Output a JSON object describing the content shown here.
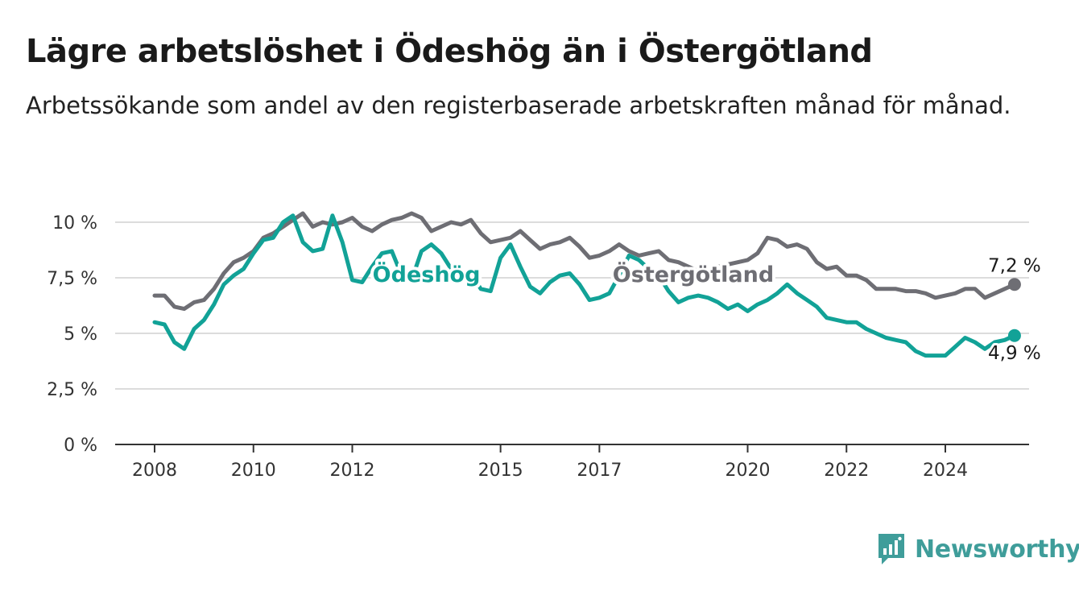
{
  "header": {
    "title": "Lägre arbetslöshet i Ödeshög än i Östergötland",
    "subtitle": "Arbetssökande som andel av den registerbaserade arbetskraften månad för månad."
  },
  "brand": {
    "name": "Newsworthy",
    "icon": "newsworthy-logo-icon",
    "color": "#3f9d9a"
  },
  "colors": {
    "odeshog": "#12a297",
    "ostergotland": "#6e6e74",
    "grid": "#dcdcdc",
    "axis": "#333333"
  },
  "chart_data": {
    "type": "line",
    "title": "Lägre arbetslöshet i Ödeshög än i Östergötland",
    "subtitle": "Arbetssökande som andel av den registerbaserade arbetskraften månad för månad.",
    "xlabel": "",
    "ylabel": "",
    "xlim": [
      2007.3,
      2025.9
    ],
    "ylim": [
      0,
      10
    ],
    "grid": true,
    "yticks": [
      0,
      2.5,
      5,
      7.5,
      10
    ],
    "ytick_labels": [
      "0 %",
      "2,5 %",
      "5 %",
      "7,5 %",
      "10 %"
    ],
    "xticks": [
      2008,
      2010,
      2012,
      2015,
      2017,
      2020,
      2022,
      2024
    ],
    "xtick_labels": [
      "2008",
      "2010",
      "2012",
      "2015",
      "2017",
      "2020",
      "2022",
      "2024"
    ],
    "series": [
      {
        "name": "Östergötland",
        "color": "#6e6e74",
        "end_label": "7,2 %",
        "points": [
          [
            2008.0,
            6.7
          ],
          [
            2008.2,
            6.7
          ],
          [
            2008.4,
            6.2
          ],
          [
            2008.6,
            6.1
          ],
          [
            2008.8,
            6.4
          ],
          [
            2009.0,
            6.5
          ],
          [
            2009.2,
            7.0
          ],
          [
            2009.4,
            7.7
          ],
          [
            2009.6,
            8.2
          ],
          [
            2009.8,
            8.4
          ],
          [
            2010.0,
            8.7
          ],
          [
            2010.2,
            9.3
          ],
          [
            2010.4,
            9.5
          ],
          [
            2010.6,
            9.8
          ],
          [
            2010.8,
            10.1
          ],
          [
            2011.0,
            10.4
          ],
          [
            2011.2,
            9.8
          ],
          [
            2011.4,
            10.0
          ],
          [
            2011.6,
            9.9
          ],
          [
            2011.8,
            10.0
          ],
          [
            2012.0,
            10.2
          ],
          [
            2012.2,
            9.8
          ],
          [
            2012.4,
            9.6
          ],
          [
            2012.6,
            9.9
          ],
          [
            2012.8,
            10.1
          ],
          [
            2013.0,
            10.2
          ],
          [
            2013.2,
            10.4
          ],
          [
            2013.4,
            10.2
          ],
          [
            2013.6,
            9.6
          ],
          [
            2013.8,
            9.8
          ],
          [
            2014.0,
            10.0
          ],
          [
            2014.2,
            9.9
          ],
          [
            2014.4,
            10.1
          ],
          [
            2014.6,
            9.5
          ],
          [
            2014.8,
            9.1
          ],
          [
            2015.0,
            9.2
          ],
          [
            2015.2,
            9.3
          ],
          [
            2015.4,
            9.6
          ],
          [
            2015.6,
            9.2
          ],
          [
            2015.8,
            8.8
          ],
          [
            2016.0,
            9.0
          ],
          [
            2016.2,
            9.1
          ],
          [
            2016.4,
            9.3
          ],
          [
            2016.6,
            8.9
          ],
          [
            2016.8,
            8.4
          ],
          [
            2017.0,
            8.5
          ],
          [
            2017.2,
            8.7
          ],
          [
            2017.4,
            9.0
          ],
          [
            2017.6,
            8.7
          ],
          [
            2017.8,
            8.5
          ],
          [
            2018.0,
            8.6
          ],
          [
            2018.2,
            8.7
          ],
          [
            2018.4,
            8.3
          ],
          [
            2018.6,
            8.2
          ],
          [
            2018.8,
            8.0
          ],
          [
            2019.0,
            7.8
          ],
          [
            2019.2,
            7.9
          ],
          [
            2019.4,
            8.0
          ],
          [
            2019.6,
            8.1
          ],
          [
            2019.8,
            8.2
          ],
          [
            2020.0,
            8.3
          ],
          [
            2020.2,
            8.6
          ],
          [
            2020.4,
            9.3
          ],
          [
            2020.6,
            9.2
          ],
          [
            2020.8,
            8.9
          ],
          [
            2021.0,
            9.0
          ],
          [
            2021.2,
            8.8
          ],
          [
            2021.4,
            8.2
          ],
          [
            2021.6,
            7.9
          ],
          [
            2021.8,
            8.0
          ],
          [
            2022.0,
            7.6
          ],
          [
            2022.2,
            7.6
          ],
          [
            2022.4,
            7.4
          ],
          [
            2022.6,
            7.0
          ],
          [
            2022.8,
            7.0
          ],
          [
            2023.0,
            7.0
          ],
          [
            2023.2,
            6.9
          ],
          [
            2023.4,
            6.9
          ],
          [
            2023.6,
            6.8
          ],
          [
            2023.8,
            6.6
          ],
          [
            2024.0,
            6.7
          ],
          [
            2024.2,
            6.8
          ],
          [
            2024.4,
            7.0
          ],
          [
            2024.6,
            7.0
          ],
          [
            2024.8,
            6.6
          ],
          [
            2025.0,
            6.8
          ],
          [
            2025.2,
            7.0
          ],
          [
            2025.4,
            7.2
          ]
        ]
      },
      {
        "name": "Ödeshög",
        "color": "#12a297",
        "end_label": "4,9 %",
        "points": [
          [
            2008.0,
            5.5
          ],
          [
            2008.2,
            5.4
          ],
          [
            2008.4,
            4.6
          ],
          [
            2008.6,
            4.3
          ],
          [
            2008.8,
            5.2
          ],
          [
            2009.0,
            5.6
          ],
          [
            2009.2,
            6.3
          ],
          [
            2009.4,
            7.2
          ],
          [
            2009.6,
            7.6
          ],
          [
            2009.8,
            7.9
          ],
          [
            2010.0,
            8.6
          ],
          [
            2010.2,
            9.2
          ],
          [
            2010.4,
            9.3
          ],
          [
            2010.6,
            10.0
          ],
          [
            2010.8,
            10.3
          ],
          [
            2011.0,
            9.1
          ],
          [
            2011.2,
            8.7
          ],
          [
            2011.4,
            8.8
          ],
          [
            2011.6,
            10.3
          ],
          [
            2011.8,
            9.1
          ],
          [
            2012.0,
            7.4
          ],
          [
            2012.2,
            7.3
          ],
          [
            2012.4,
            8.0
          ],
          [
            2012.6,
            8.6
          ],
          [
            2012.8,
            8.7
          ],
          [
            2013.0,
            7.6
          ],
          [
            2013.2,
            7.4
          ],
          [
            2013.4,
            8.7
          ],
          [
            2013.6,
            9.0
          ],
          [
            2013.8,
            8.6
          ],
          [
            2014.0,
            7.9
          ],
          [
            2014.2,
            7.5
          ],
          [
            2014.4,
            7.7
          ],
          [
            2014.6,
            7.0
          ],
          [
            2014.8,
            6.9
          ],
          [
            2015.0,
            8.4
          ],
          [
            2015.2,
            9.0
          ],
          [
            2015.4,
            8.0
          ],
          [
            2015.6,
            7.1
          ],
          [
            2015.8,
            6.8
          ],
          [
            2016.0,
            7.3
          ],
          [
            2016.2,
            7.6
          ],
          [
            2016.4,
            7.7
          ],
          [
            2016.6,
            7.2
          ],
          [
            2016.8,
            6.5
          ],
          [
            2017.0,
            6.6
          ],
          [
            2017.2,
            6.8
          ],
          [
            2017.4,
            7.6
          ],
          [
            2017.6,
            8.5
          ],
          [
            2017.8,
            8.3
          ],
          [
            2018.0,
            7.9
          ],
          [
            2018.2,
            7.6
          ],
          [
            2018.4,
            6.9
          ],
          [
            2018.6,
            6.4
          ],
          [
            2018.8,
            6.6
          ],
          [
            2019.0,
            6.7
          ],
          [
            2019.2,
            6.6
          ],
          [
            2019.4,
            6.4
          ],
          [
            2019.6,
            6.1
          ],
          [
            2019.8,
            6.3
          ],
          [
            2020.0,
            6.0
          ],
          [
            2020.2,
            6.3
          ],
          [
            2020.4,
            6.5
          ],
          [
            2020.6,
            6.8
          ],
          [
            2020.8,
            7.2
          ],
          [
            2021.0,
            6.8
          ],
          [
            2021.2,
            6.5
          ],
          [
            2021.4,
            6.2
          ],
          [
            2021.6,
            5.7
          ],
          [
            2021.8,
            5.6
          ],
          [
            2022.0,
            5.5
          ],
          [
            2022.2,
            5.5
          ],
          [
            2022.4,
            5.2
          ],
          [
            2022.6,
            5.0
          ],
          [
            2022.8,
            4.8
          ],
          [
            2023.0,
            4.7
          ],
          [
            2023.2,
            4.6
          ],
          [
            2023.4,
            4.2
          ],
          [
            2023.6,
            4.0
          ],
          [
            2023.8,
            4.0
          ],
          [
            2024.0,
            4.0
          ],
          [
            2024.2,
            4.4
          ],
          [
            2024.4,
            4.8
          ],
          [
            2024.6,
            4.6
          ],
          [
            2024.8,
            4.3
          ],
          [
            2025.0,
            4.6
          ],
          [
            2025.2,
            4.7
          ],
          [
            2025.4,
            4.9
          ]
        ]
      }
    ]
  }
}
